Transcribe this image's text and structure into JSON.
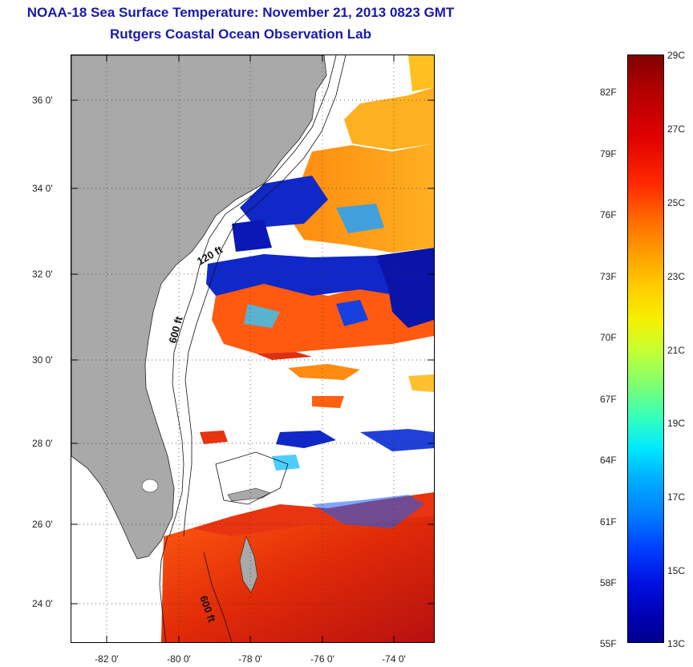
{
  "title": {
    "line1": "NOAA-18 Sea Surface Temperature:  November 21, 2013 0823 GMT",
    "line2": "Rutgers Coastal Ocean Observation Lab"
  },
  "map": {
    "x_range": [
      -83,
      -73
    ],
    "y_range": [
      23,
      37
    ],
    "grid": "dotted",
    "lat_labels": [
      "36 0'",
      "34 0'",
      "32 0'",
      "30 0'",
      "28 0'",
      "26 0'",
      "24 0'"
    ],
    "lon_labels": [
      "-82 0'",
      "-80 0'",
      "-78 0'",
      "-76 0'",
      "-74 0'"
    ],
    "contour_labels": [
      "120 ft",
      "600 ft",
      "600 ft"
    ],
    "colors": {
      "land": "#a9a9a9",
      "cloud": "#ffffff",
      "warm_water": "#e63a10",
      "cool_water": "#1030c8"
    }
  },
  "colorbar": {
    "fahrenheit_labels": [
      "82F",
      "79F",
      "76F",
      "73F",
      "70F",
      "67F",
      "64F",
      "61F",
      "58F",
      "55F"
    ],
    "celsius_labels": [
      "29C",
      "27C",
      "25C",
      "23C",
      "21C",
      "19C",
      "17C",
      "15C",
      "13C"
    ],
    "range_c": [
      13,
      29
    ],
    "range_f": [
      55,
      84
    ]
  }
}
